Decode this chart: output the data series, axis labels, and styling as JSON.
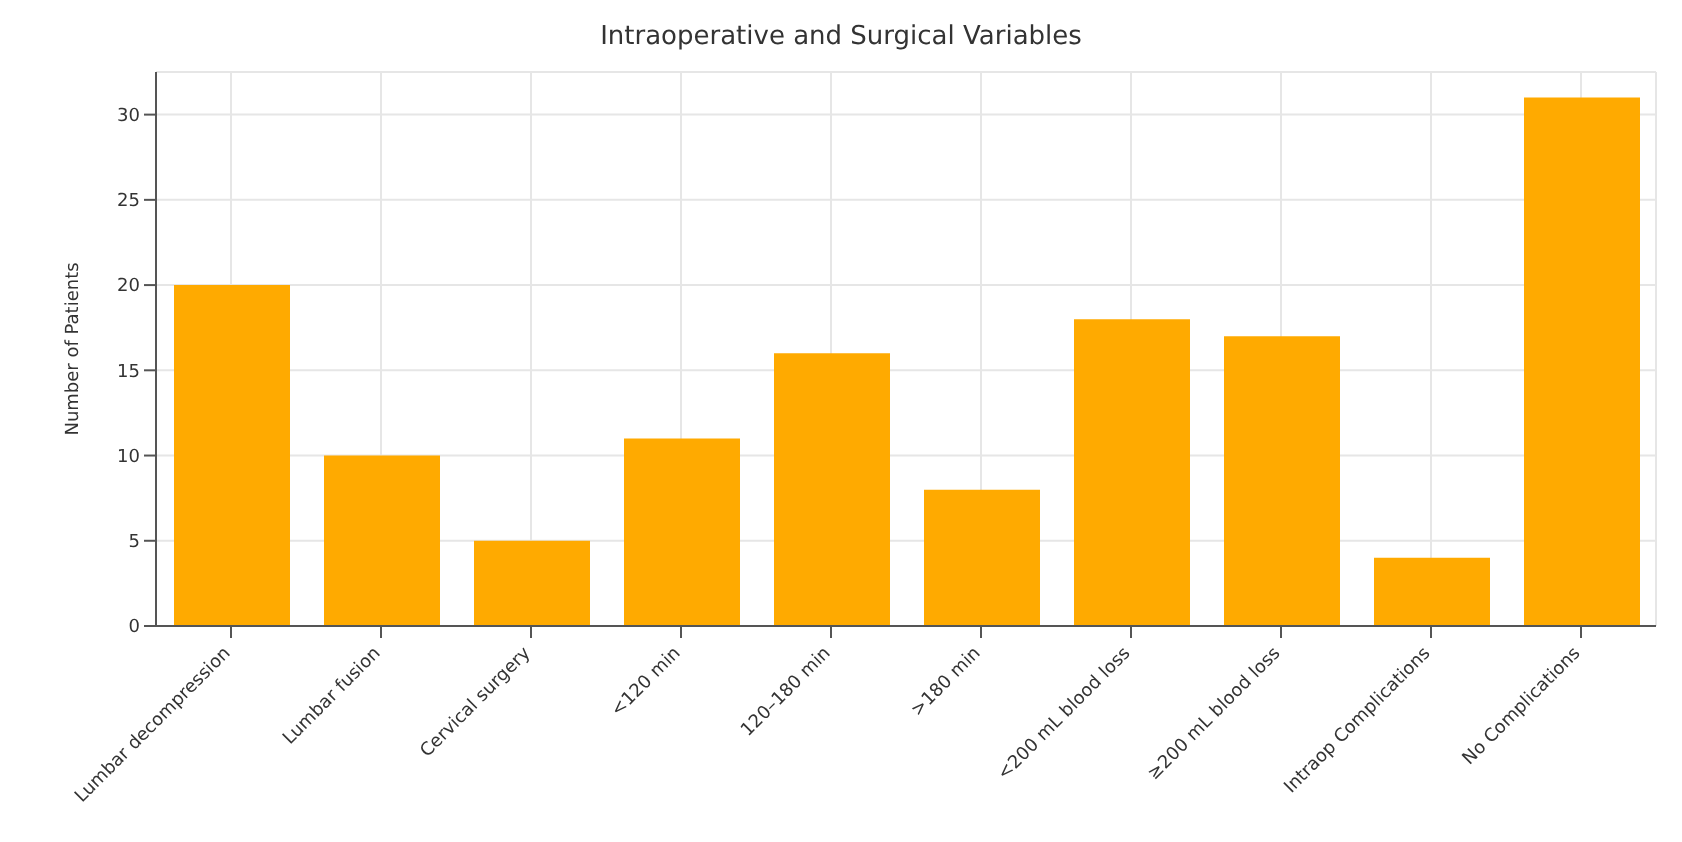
{
  "chart_data": {
    "type": "bar",
    "title": "Intraoperative and Surgical Variables",
    "ylabel": "Number of Patients",
    "categories": [
      "Lumbar decompression",
      "Lumbar fusion",
      "Cervical surgery",
      "<120 min",
      "120–180 min",
      ">180 min",
      "<200 mL blood loss",
      "≥200 mL blood loss",
      "Intraop Complications",
      "No Complications"
    ],
    "values": [
      20,
      10,
      5,
      11,
      16,
      8,
      18,
      17,
      4,
      31
    ],
    "color": "#ffaa00",
    "ylim": [
      0,
      32.5
    ],
    "yticks": [
      0,
      5,
      10,
      15,
      20,
      25,
      30
    ],
    "grid": true
  }
}
